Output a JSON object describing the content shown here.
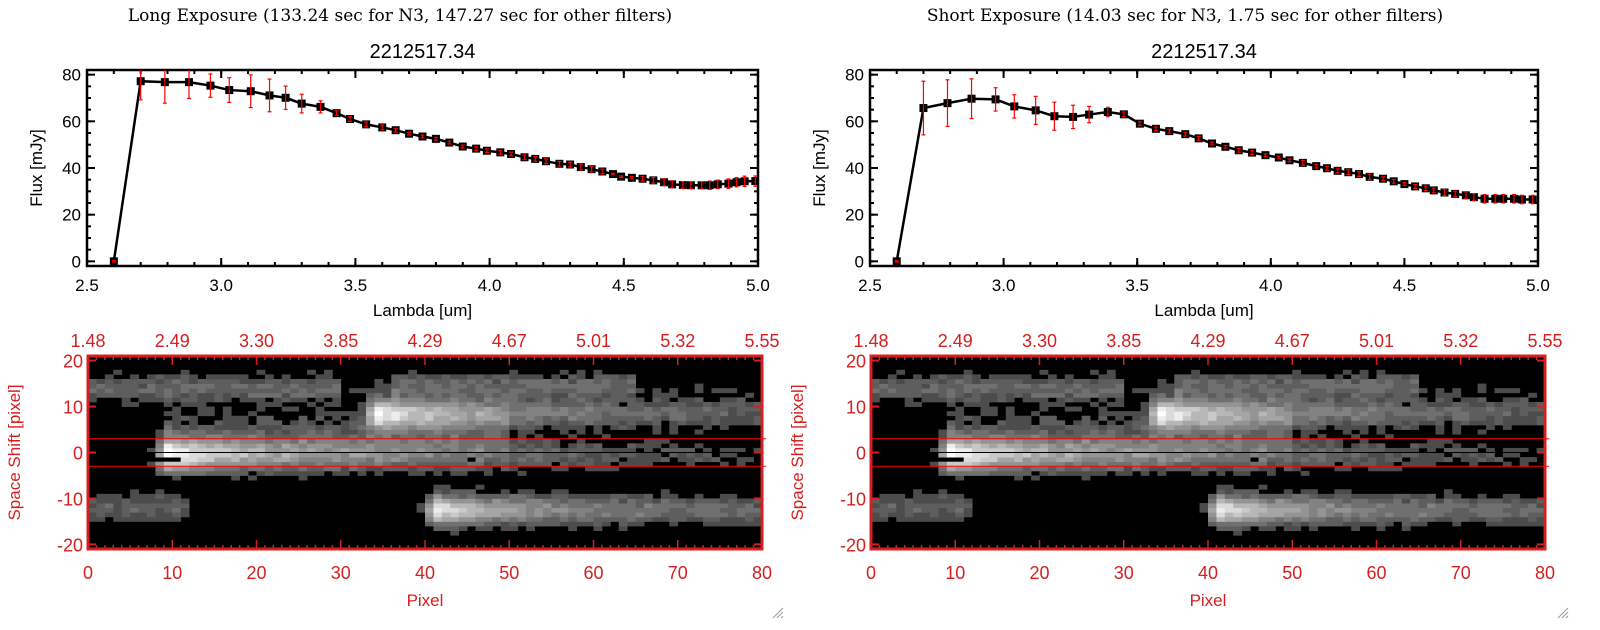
{
  "colors": {
    "axis": "#000000",
    "errorbar": "#ff0000",
    "image_axis": "#d42020",
    "slit_line": "#ff0000",
    "center_line": "#000000"
  },
  "panels": [
    {
      "title": "Long Exposure (133.24 sec for N3, 147.27 sec for other filters)",
      "object": "2212517.34"
    },
    {
      "title": "Short Exposure (14.03 sec for N3, 1.75 sec for other filters)",
      "object": "2212517.34"
    }
  ],
  "chart_data": [
    {
      "type": "line",
      "title": "2212517.34",
      "xlabel": "Lambda [um]",
      "ylabel": "Flux [mJy]",
      "xlim": [
        2.5,
        5.0
      ],
      "ylim": [
        -2,
        82
      ],
      "xticks": [
        "2.5",
        "3.0",
        "3.5",
        "4.0",
        "4.5",
        "5.0"
      ],
      "yticks": [
        "0",
        "20",
        "40",
        "60",
        "80"
      ],
      "markers": "square",
      "x": [
        2.6,
        2.7,
        2.79,
        2.88,
        2.96,
        3.03,
        3.11,
        3.18,
        3.24,
        3.3,
        3.37,
        3.43,
        3.48,
        3.54,
        3.6,
        3.65,
        3.7,
        3.75,
        3.8,
        3.85,
        3.9,
        3.95,
        3.99,
        4.04,
        4.08,
        4.13,
        4.17,
        4.21,
        4.26,
        4.3,
        4.34,
        4.38,
        4.42,
        4.46,
        4.49,
        4.53,
        4.57,
        4.61,
        4.65,
        4.68,
        4.72,
        4.75,
        4.79,
        4.82,
        4.85,
        4.89,
        4.92,
        4.95,
        4.99
      ],
      "y": [
        0,
        77.2,
        76.8,
        76.8,
        75.3,
        73.4,
        72.9,
        71.1,
        70.1,
        67.6,
        66.2,
        63.5,
        61.0,
        58.7,
        57.4,
        56.2,
        54.7,
        53.5,
        52.5,
        50.9,
        49.2,
        48.3,
        47.4,
        46.7,
        46.0,
        44.6,
        43.9,
        42.9,
        41.8,
        41.5,
        40.4,
        39.5,
        38.5,
        37.4,
        36.3,
        35.8,
        35.4,
        34.7,
        33.9,
        33.0,
        32.7,
        32.6,
        32.6,
        32.6,
        33.0,
        33.3,
        33.9,
        34.3,
        34.4
      ],
      "yerr": [
        0.3,
        8,
        9,
        7,
        5,
        5.3,
        7,
        7,
        5,
        4,
        2.6,
        1,
        1,
        1,
        1,
        0.8,
        0.6,
        0.6,
        0.6,
        0.6,
        0.6,
        0.8,
        0.8,
        0.8,
        0.8,
        1,
        1,
        1,
        1,
        1,
        1.2,
        1.2,
        1,
        0.3,
        0.3,
        0.5,
        1,
        1.2,
        1.5,
        1.5,
        1.5,
        1.5,
        1.5,
        1.8,
        1.8,
        2,
        2,
        2.2,
        2.2
      ]
    },
    {
      "type": "heatmap",
      "xlabel": "Pixel",
      "ylabel": "Space Shift [pixel]",
      "xlim": [
        0,
        80
      ],
      "ylim": [
        -21,
        21
      ],
      "xticks": [
        "0",
        "10",
        "20",
        "30",
        "40",
        "50",
        "60",
        "70",
        "80"
      ],
      "yticks": [
        "20",
        "10",
        "0",
        "-10",
        "-20"
      ],
      "top_xticks": [
        "1.48",
        "2.49",
        "3.30",
        "3.85",
        "4.29",
        "4.67",
        "5.01",
        "5.32",
        "5.55"
      ],
      "colormap": "grayscale",
      "extraction_lines": [
        3,
        -3
      ],
      "center_line": 0
    },
    {
      "type": "line",
      "title": "2212517.34",
      "xlabel": "Lambda [um]",
      "ylabel": "Flux [mJy]",
      "xlim": [
        2.5,
        5.0
      ],
      "ylim": [
        -2,
        82
      ],
      "xticks": [
        "2.5",
        "3.0",
        "3.5",
        "4.0",
        "4.5",
        "5.0"
      ],
      "yticks": [
        "0",
        "20",
        "40",
        "60",
        "80"
      ],
      "markers": "square",
      "x": [
        2.6,
        2.7,
        2.79,
        2.88,
        2.97,
        3.04,
        3.12,
        3.19,
        3.26,
        3.32,
        3.39,
        3.45,
        3.51,
        3.57,
        3.62,
        3.68,
        3.73,
        3.78,
        3.83,
        3.88,
        3.93,
        3.98,
        4.03,
        4.07,
        4.12,
        4.17,
        4.21,
        4.25,
        4.29,
        4.33,
        4.37,
        4.42,
        4.46,
        4.5,
        4.54,
        4.58,
        4.61,
        4.65,
        4.69,
        4.73,
        4.76,
        4.8,
        4.84,
        4.87,
        4.91,
        4.94,
        4.98
      ],
      "y": [
        0,
        65.7,
        67.8,
        69.7,
        69.4,
        66.4,
        64.7,
        62.2,
        61.9,
        62.9,
        64.0,
        63.0,
        59.0,
        56.8,
        55.8,
        54.5,
        52.7,
        50.5,
        49.1,
        47.6,
        46.6,
        45.5,
        44.5,
        43.3,
        42.2,
        40.8,
        39.9,
        38.8,
        38.2,
        37.4,
        36.2,
        35.4,
        34.3,
        33.1,
        32.1,
        31.3,
        30.4,
        29.5,
        28.9,
        28.3,
        27.5,
        26.8,
        26.8,
        26.8,
        26.8,
        26.5,
        26.5
      ],
      "yerr": [
        0.3,
        11.5,
        10,
        8.5,
        5,
        5,
        6,
        6,
        5,
        3.5,
        2,
        1,
        0.8,
        0.8,
        0.8,
        0.8,
        0.8,
        0.6,
        0.6,
        0.8,
        0.8,
        0.6,
        0.6,
        0.6,
        1,
        0.8,
        0.8,
        0.8,
        1,
        1,
        1.2,
        0.8,
        0.8,
        0.6,
        0.8,
        1,
        1,
        1.2,
        1.2,
        1.5,
        1.5,
        1.8,
        1.8,
        1.8,
        1.8,
        1.8,
        1.8
      ]
    },
    {
      "type": "heatmap",
      "xlabel": "Pixel",
      "ylabel": "Space Shift [pixel]",
      "xlim": [
        0,
        80
      ],
      "ylim": [
        -21,
        21
      ],
      "xticks": [
        "0",
        "10",
        "20",
        "30",
        "40",
        "50",
        "60",
        "70",
        "80"
      ],
      "yticks": [
        "20",
        "10",
        "0",
        "-10",
        "-20"
      ],
      "top_xticks": [
        "1.48",
        "2.49",
        "3.30",
        "3.85",
        "4.29",
        "4.67",
        "5.01",
        "5.32",
        "5.55"
      ],
      "colormap": "grayscale",
      "extraction_lines": [
        3,
        -3
      ],
      "center_line": 0
    }
  ]
}
